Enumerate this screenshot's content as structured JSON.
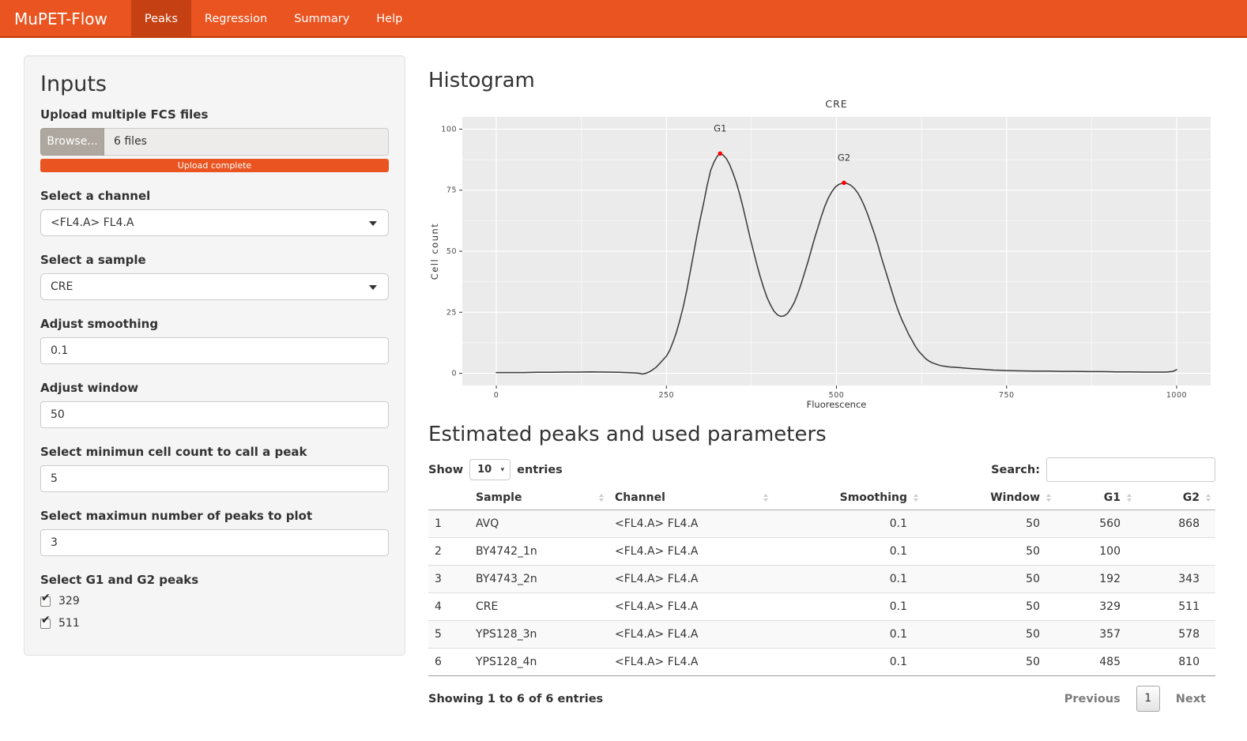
{
  "navbar": {
    "brand": "MuPET-Flow",
    "tabs": [
      {
        "label": "Peaks",
        "active": true
      },
      {
        "label": "Regression",
        "active": false
      },
      {
        "label": "Summary",
        "active": false
      },
      {
        "label": "Help",
        "active": false
      }
    ]
  },
  "inputs": {
    "title": "Inputs",
    "upload": {
      "label": "Upload multiple FCS files",
      "browse_label": "Browse...",
      "file_text": "6 files",
      "progress_text": "Upload complete"
    },
    "channel": {
      "label": "Select a channel",
      "value": "<FL4.A> FL4.A"
    },
    "sample": {
      "label": "Select a sample",
      "value": "CRE"
    },
    "smoothing": {
      "label": "Adjust smoothing",
      "value": "0.1"
    },
    "window": {
      "label": "Adjust window",
      "value": "50"
    },
    "min_count": {
      "label": "Select minimun cell count to call a peak",
      "value": "5"
    },
    "max_peaks": {
      "label": "Select maximun number of peaks to plot",
      "value": "3"
    },
    "peaks_check": {
      "label": "Select G1 and G2 peaks",
      "options": [
        {
          "label": "329",
          "checked": true
        },
        {
          "label": "511",
          "checked": true
        }
      ]
    }
  },
  "main": {
    "histogram_title": "Histogram",
    "table_title": "Estimated peaks and used parameters",
    "show": {
      "label_before": "Show",
      "value": "10",
      "label_after": "entries"
    },
    "search": {
      "label": "Search:",
      "value": ""
    },
    "table": {
      "headers": [
        "",
        "Sample",
        "Channel",
        "Smoothing",
        "Window",
        "G1",
        "G2"
      ],
      "rows": [
        [
          "1",
          "AVQ",
          "<FL4.A> FL4.A",
          "0.1",
          "50",
          "560",
          "868"
        ],
        [
          "2",
          "BY4742_1n",
          "<FL4.A> FL4.A",
          "0.1",
          "50",
          "100",
          ""
        ],
        [
          "3",
          "BY4743_2n",
          "<FL4.A> FL4.A",
          "0.1",
          "50",
          "192",
          "343"
        ],
        [
          "4",
          "CRE",
          "<FL4.A> FL4.A",
          "0.1",
          "50",
          "329",
          "511"
        ],
        [
          "5",
          "YPS128_3n",
          "<FL4.A> FL4.A",
          "0.1",
          "50",
          "357",
          "578"
        ],
        [
          "6",
          "YPS128_4n",
          "<FL4.A> FL4.A",
          "0.1",
          "50",
          "485",
          "810"
        ]
      ]
    },
    "footer": {
      "info": "Showing 1 to 6 of 6 entries",
      "previous": "Previous",
      "page": "1",
      "next": "Next"
    }
  },
  "colors": {
    "navbar": "#E95420",
    "navbar_active": "#C54113",
    "progress": "#E95420",
    "browse_button": "#aea79f"
  },
  "chart_data": {
    "type": "line",
    "title": "CRE",
    "xlabel": "Fluorescence",
    "ylabel": "Cell count",
    "xlim": [
      0,
      1000
    ],
    "ylim": [
      0,
      100
    ],
    "x_ticks": [
      0,
      250,
      500,
      750,
      1000
    ],
    "y_ticks": [
      0,
      25,
      50,
      75,
      100
    ],
    "grid": "major+minor",
    "legend": "none",
    "panel_color": "#ebebeb",
    "grid_color": "#ffffff",
    "line_color": "#383838",
    "peak_color": "#ff0000",
    "peaks": [
      {
        "label": "G1",
        "x": 329,
        "y": 90
      },
      {
        "label": "G2",
        "x": 511,
        "y": 78
      }
    ],
    "points": [
      [
        0,
        0.3
      ],
      [
        20,
        0.3
      ],
      [
        40,
        0.3
      ],
      [
        60,
        0.4
      ],
      [
        80,
        0.4
      ],
      [
        100,
        0.5
      ],
      [
        120,
        0.5
      ],
      [
        140,
        0.6
      ],
      [
        160,
        0.5
      ],
      [
        180,
        0.4
      ],
      [
        200,
        0.2
      ],
      [
        210,
        0
      ],
      [
        215,
        -0.3
      ],
      [
        220,
        0
      ],
      [
        225,
        0.6
      ],
      [
        230,
        1.5
      ],
      [
        235,
        2.5
      ],
      [
        240,
        4
      ],
      [
        245,
        5.5
      ],
      [
        250,
        7
      ],
      [
        255,
        9.5
      ],
      [
        260,
        13
      ],
      [
        265,
        17
      ],
      [
        270,
        22
      ],
      [
        275,
        27.5
      ],
      [
        280,
        34
      ],
      [
        285,
        41.5
      ],
      [
        290,
        49
      ],
      [
        295,
        56.5
      ],
      [
        300,
        63.5
      ],
      [
        305,
        70
      ],
      [
        310,
        77
      ],
      [
        315,
        83
      ],
      [
        320,
        86.5
      ],
      [
        325,
        89
      ],
      [
        329,
        90
      ],
      [
        333,
        89.5
      ],
      [
        338,
        88
      ],
      [
        343,
        85.5
      ],
      [
        348,
        82
      ],
      [
        353,
        78
      ],
      [
        358,
        73
      ],
      [
        363,
        67.5
      ],
      [
        368,
        61.5
      ],
      [
        373,
        55.5
      ],
      [
        378,
        50
      ],
      [
        383,
        44.5
      ],
      [
        388,
        39.5
      ],
      [
        393,
        35
      ],
      [
        398,
        31
      ],
      [
        403,
        28
      ],
      [
        408,
        25.5
      ],
      [
        413,
        24
      ],
      [
        418,
        23.3
      ],
      [
        423,
        23.5
      ],
      [
        428,
        24.5
      ],
      [
        433,
        26.5
      ],
      [
        438,
        29
      ],
      [
        443,
        32.5
      ],
      [
        448,
        36.5
      ],
      [
        453,
        41
      ],
      [
        458,
        45.5
      ],
      [
        463,
        50.5
      ],
      [
        468,
        55.5
      ],
      [
        473,
        60
      ],
      [
        478,
        64.5
      ],
      [
        483,
        68.5
      ],
      [
        488,
        71.8
      ],
      [
        493,
        74.3
      ],
      [
        498,
        76.2
      ],
      [
        503,
        77.3
      ],
      [
        508,
        77.8
      ],
      [
        511,
        78
      ],
      [
        516,
        77.7
      ],
      [
        521,
        77
      ],
      [
        526,
        75.8
      ],
      [
        531,
        74
      ],
      [
        536,
        71.5
      ],
      [
        541,
        68.5
      ],
      [
        546,
        65
      ],
      [
        551,
        61
      ],
      [
        556,
        57
      ],
      [
        561,
        52.5
      ],
      [
        566,
        47.5
      ],
      [
        571,
        43
      ],
      [
        576,
        38.5
      ],
      [
        581,
        34
      ],
      [
        586,
        29.5
      ],
      [
        591,
        25.5
      ],
      [
        596,
        22
      ],
      [
        601,
        19
      ],
      [
        606,
        16
      ],
      [
        611,
        13.5
      ],
      [
        616,
        11
      ],
      [
        621,
        9
      ],
      [
        626,
        7.5
      ],
      [
        631,
        6
      ],
      [
        636,
        5
      ],
      [
        641,
        4.3
      ],
      [
        646,
        3.8
      ],
      [
        651,
        3.3
      ],
      [
        656,
        3
      ],
      [
        661,
        2.8
      ],
      [
        666,
        2.6
      ],
      [
        671,
        2.5
      ],
      [
        681,
        2.3
      ],
      [
        691,
        2.1
      ],
      [
        701,
        1.9
      ],
      [
        711,
        1.7
      ],
      [
        721,
        1.5
      ],
      [
        731,
        1.3
      ],
      [
        741,
        1.2
      ],
      [
        751,
        1.1
      ],
      [
        771,
        1
      ],
      [
        791,
        0.9
      ],
      [
        811,
        0.9
      ],
      [
        831,
        0.8
      ],
      [
        851,
        0.8
      ],
      [
        871,
        0.7
      ],
      [
        891,
        0.7
      ],
      [
        911,
        0.6
      ],
      [
        931,
        0.6
      ],
      [
        951,
        0.5
      ],
      [
        971,
        0.5
      ],
      [
        985,
        0.5
      ],
      [
        995,
        0.8
      ],
      [
        1000,
        1.5
      ]
    ]
  }
}
